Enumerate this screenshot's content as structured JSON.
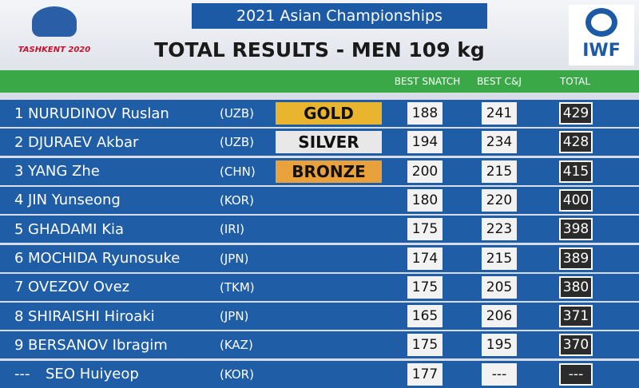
{
  "header": {
    "logo_left": "TASHKENT 2020",
    "event": "2021 Asian Championships",
    "title": "TOTAL RESULTS - MEN 109 kg",
    "logo_right": "IWF"
  },
  "columns": [
    "BEST SNATCH",
    "BEST C&J",
    "TOTAL"
  ],
  "rows": [
    {
      "rank": "1",
      "name": "NURUDINOV Ruslan",
      "nation": "(UZB)",
      "medal": "GOLD",
      "snatch": 188,
      "cj": 241,
      "total": 429
    },
    {
      "rank": "2",
      "name": "DJURAEV Akbar",
      "nation": "(UZB)",
      "medal": "SILVER",
      "snatch": 194,
      "cj": 234,
      "total": 428
    },
    {
      "rank": "3",
      "name": "YANG Zhe",
      "nation": "(CHN)",
      "medal": "BRONZE",
      "snatch": 200,
      "cj": 215,
      "total": 415
    },
    {
      "rank": "4",
      "name": "JIN Yunseong",
      "nation": "(KOR)",
      "snatch": 180,
      "cj": 220,
      "total": 400
    },
    {
      "rank": "5",
      "name": "GHADAMI Kia",
      "nation": "(IRI)",
      "snatch": 175,
      "cj": 223,
      "total": 398
    },
    {
      "rank": "6",
      "name": "MOCHIDA Ryunosuke",
      "nation": "(JPN)",
      "snatch": 174,
      "cj": 215,
      "total": 389
    },
    {
      "rank": "7",
      "name": "OVEZOV Ovez",
      "nation": "(TKM)",
      "snatch": 175,
      "cj": 205,
      "total": 380
    },
    {
      "rank": "8",
      "name": "SHIRAISHI Hiroaki",
      "nation": "(JPN)",
      "snatch": 165,
      "cj": 206,
      "total": 371
    },
    {
      "rank": "9",
      "name": "BERSANOV Ibragim",
      "nation": "(KAZ)",
      "snatch": 175,
      "cj": 195,
      "total": 370
    },
    {
      "rank": "---",
      "name": "SEO Huiyeop",
      "nation": "(KOR)",
      "snatch": 177,
      "cj": "---",
      "total": "---"
    }
  ]
}
